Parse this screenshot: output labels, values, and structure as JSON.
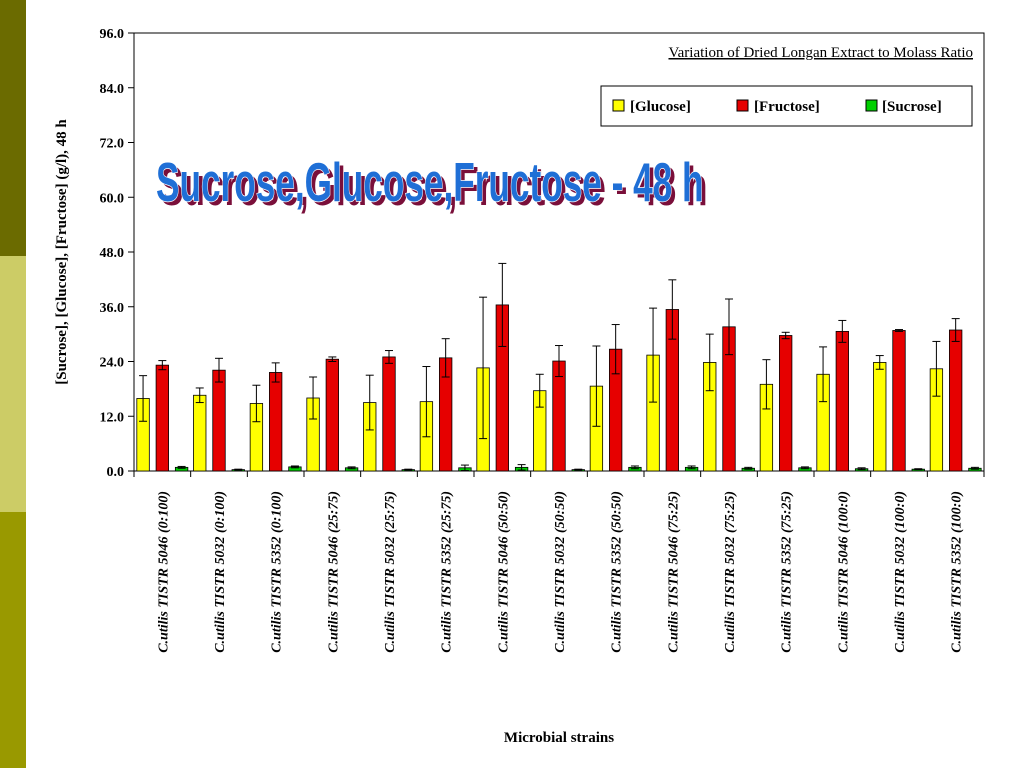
{
  "colors": {
    "glucose": "#ffff00",
    "fructose": "#e60000",
    "sucrose": "#00d000",
    "side_bar_dark": "#6b6b00",
    "side_bar_light": "#cccc66",
    "side_bar_olive": "#999900",
    "overlay_title": "#1f6fd6"
  },
  "overlay_title": "Sucrose,Glucose,Fructose - 48 h",
  "chart_data": {
    "type": "bar",
    "subtitle": "Variation of Dried Longan Extract to Molass Ratio",
    "xlabel": "Microbial strains",
    "ylabel": "[Sucrose], [Glucose], [Fructose] (g/l), 48 h",
    "ylim": [
      0,
      96
    ],
    "yticks": [
      "0.0",
      "12.0",
      "24.0",
      "36.0",
      "48.0",
      "60.0",
      "72.0",
      "84.0",
      "96.0"
    ],
    "legend_position": "top-right",
    "legend": [
      "[Glucose]",
      "[Fructose]",
      "[Sucrose]"
    ],
    "categories": [
      "C.utilis TISTR 5046 (0:100)",
      "C.utilis TISTR 5032 (0:100)",
      "C.utilis TISTR 5352 (0:100)",
      "C.utilis TISTR 5046 (25:75)",
      "C.utilis TISTR 5032 (25:75)",
      "C.utilis TISTR 5352 (25:75)",
      "C.utilis TISTR 5046 (50:50)",
      "C.utilis TISTR 5032 (50:50)",
      "C.utilis TISTR 5352 (50:50)",
      "C.utilis TISTR 5046 (75:25)",
      "C.utilis TISTR 5032 (75:25)",
      "C.utilis TISTR 5352 (75:25)",
      "C.utilis TISTR 5046 (100:0)",
      "C.utilis TISTR 5032 (100:0)",
      "C.utilis TISTR 5352 (100:0)"
    ],
    "series": [
      {
        "name": "[Glucose]",
        "values": [
          15.9,
          16.6,
          14.8,
          16.0,
          15.0,
          15.2,
          22.6,
          17.6,
          18.6,
          25.4,
          23.8,
          19.0,
          21.2,
          23.8,
          22.4
        ],
        "errors": [
          5.0,
          1.6,
          4.0,
          4.6,
          6.0,
          7.7,
          15.5,
          3.6,
          8.8,
          10.3,
          6.2,
          5.4,
          6.0,
          1.5,
          6.0
        ]
      },
      {
        "name": "[Fructose]",
        "values": [
          23.2,
          22.1,
          21.6,
          24.5,
          25.0,
          24.8,
          36.4,
          24.1,
          26.7,
          35.4,
          31.6,
          29.7,
          30.6,
          30.8,
          30.9
        ],
        "errors": [
          1.0,
          2.6,
          2.1,
          0.5,
          1.4,
          4.2,
          9.1,
          3.4,
          5.4,
          6.5,
          6.1,
          0.7,
          2.4,
          0.2,
          2.5
        ]
      },
      {
        "name": "[Sucrose]",
        "values": [
          0.8,
          0.3,
          0.9,
          0.7,
          0.3,
          0.7,
          0.8,
          0.3,
          0.8,
          0.8,
          0.6,
          0.7,
          0.5,
          0.4,
          0.6
        ],
        "errors": [
          0.2,
          0.1,
          0.2,
          0.2,
          0.1,
          0.6,
          0.6,
          0.1,
          0.3,
          0.3,
          0.2,
          0.2,
          0.2,
          0.1,
          0.2
        ]
      }
    ]
  }
}
